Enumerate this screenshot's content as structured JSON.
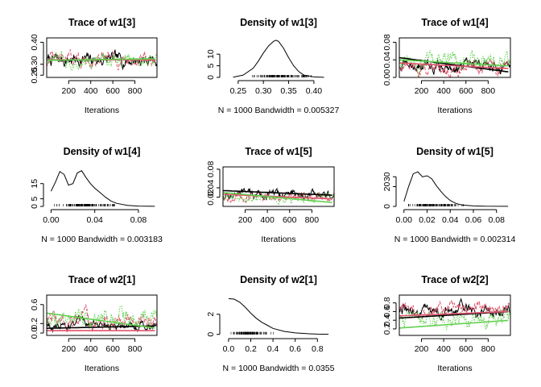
{
  "chart_data": [
    {
      "type": "line",
      "kind": "trace",
      "title": "Trace of w1[3]",
      "xlabel": "Iterations",
      "xlim": [
        1,
        1000
      ],
      "ylim": [
        0.24,
        0.42
      ],
      "xticks": [
        200,
        400,
        600,
        800
      ],
      "yticks": [
        0.25,
        0.3,
        0.4
      ],
      "series": [
        {
          "color": "#000000",
          "style": "solid",
          "level": 0.32,
          "spread": 0.025
        },
        {
          "color": "#DF536B",
          "style": "dashed",
          "level": 0.32,
          "spread": 0.025
        },
        {
          "color": "#61D04F",
          "style": "dotted",
          "level": 0.32,
          "spread": 0.025
        }
      ],
      "smooth": [
        {
          "color": "#000000",
          "y0": 0.318,
          "y1": 0.322
        },
        {
          "color": "#DF536B",
          "y0": 0.32,
          "y1": 0.32
        },
        {
          "color": "#61D04F",
          "y0": 0.318,
          "y1": 0.325
        }
      ]
    },
    {
      "type": "area",
      "kind": "density",
      "title": "Density of w1[3]",
      "xlabel": "N = 1000   Bandwidth = 0.005327",
      "xlim": [
        0.22,
        0.44
      ],
      "ylim": [
        0,
        17
      ],
      "xticks": [
        0.25,
        0.3,
        0.35,
        0.4
      ],
      "yticks": [
        0,
        5,
        10
      ],
      "x": [
        0.24,
        0.26,
        0.28,
        0.29,
        0.3,
        0.31,
        0.32,
        0.325,
        0.33,
        0.34,
        0.35,
        0.36,
        0.37,
        0.38,
        0.4,
        0.42
      ],
      "y": [
        0.1,
        1.0,
        4.0,
        7.0,
        10.5,
        13.5,
        15.5,
        16.0,
        15.5,
        12.5,
        8.5,
        5.0,
        2.5,
        1.0,
        0.2,
        0.05
      ],
      "rug": [
        0.27,
        0.42
      ]
    },
    {
      "type": "line",
      "kind": "trace",
      "title": "Trace of w1[4]",
      "xlabel": "Iterations",
      "xlim": [
        1,
        1000
      ],
      "ylim": [
        0,
        0.09
      ],
      "xticks": [
        200,
        400,
        600,
        800
      ],
      "yticks": [
        0.0,
        0.04,
        0.08
      ],
      "series": [
        {
          "color": "#000000",
          "style": "solid",
          "level": 0.025,
          "spread": 0.012
        },
        {
          "color": "#DF536B",
          "style": "dashed",
          "level": 0.022,
          "spread": 0.012
        },
        {
          "color": "#61D04F",
          "style": "dotted",
          "level": 0.035,
          "spread": 0.015
        }
      ],
      "smooth": [
        {
          "color": "#000000",
          "y0": 0.045,
          "y1": 0.012
        },
        {
          "color": "#DF536B",
          "y0": 0.033,
          "y1": 0.02
        },
        {
          "color": "#61D04F",
          "y0": 0.04,
          "y1": 0.026
        }
      ]
    },
    {
      "type": "area",
      "kind": "density",
      "title": "Density of w1[4]",
      "xlabel": "N = 1000   Bandwidth = 0.003183",
      "xlim": [
        -0.004,
        0.097
      ],
      "ylim": [
        0,
        26
      ],
      "xticks": [
        0.0,
        0.04,
        0.08
      ],
      "yticks": [
        0,
        5,
        15
      ],
      "x": [
        0.0,
        0.004,
        0.008,
        0.012,
        0.016,
        0.02,
        0.024,
        0.028,
        0.032,
        0.036,
        0.04,
        0.045,
        0.05,
        0.055,
        0.06,
        0.07,
        0.08,
        0.095
      ],
      "y": [
        10,
        16,
        23,
        21,
        14,
        15,
        22,
        23.5,
        19,
        15,
        12,
        9,
        6,
        3.5,
        2,
        0.7,
        0.2,
        0.05
      ],
      "rug": [
        0.0,
        0.07
      ]
    },
    {
      "type": "line",
      "kind": "trace",
      "title": "Trace of w1[5]",
      "xlabel": "Iterations",
      "xlim": [
        1,
        1000
      ],
      "ylim": [
        0,
        0.085
      ],
      "xticks": [
        200,
        400,
        600,
        800
      ],
      "yticks": [
        0.02,
        0.04,
        0.08
      ],
      "series": [
        {
          "color": "#000000",
          "style": "solid",
          "level": 0.025,
          "spread": 0.008
        },
        {
          "color": "#DF536B",
          "style": "dashed",
          "level": 0.02,
          "spread": 0.007
        },
        {
          "color": "#61D04F",
          "style": "dotted",
          "level": 0.02,
          "spread": 0.008
        }
      ],
      "smooth": [
        {
          "color": "#000000",
          "y0": 0.034,
          "y1": 0.024
        },
        {
          "color": "#DF536B",
          "y0": 0.026,
          "y1": 0.016
        },
        {
          "color": "#61D04F",
          "y0": 0.03,
          "y1": 0.008
        }
      ]
    },
    {
      "type": "area",
      "kind": "density",
      "title": "Density of w1[5]",
      "xlabel": "N = 1000   Bandwidth = 0.002314",
      "xlim": [
        -0.004,
        0.092
      ],
      "ylim": [
        0,
        40
      ],
      "xticks": [
        0.0,
        0.02,
        0.04,
        0.06,
        0.08
      ],
      "yticks": [
        0,
        20,
        30
      ],
      "x": [
        0.0,
        0.004,
        0.008,
        0.012,
        0.016,
        0.02,
        0.024,
        0.028,
        0.032,
        0.036,
        0.04,
        0.045,
        0.05,
        0.06,
        0.07,
        0.09
      ],
      "y": [
        5,
        20,
        33,
        35,
        30,
        31,
        28,
        21,
        15,
        10,
        6,
        3,
        1.5,
        0.5,
        0.2,
        0.05
      ],
      "rug": [
        0.0,
        0.06
      ]
    },
    {
      "type": "line",
      "kind": "trace",
      "title": "Trace of w2[1]",
      "xlabel": "Iterations",
      "xlim": [
        1,
        1000
      ],
      "ylim": [
        -0.05,
        0.8
      ],
      "xticks": [
        200,
        400,
        600,
        800
      ],
      "yticks": [
        0.0,
        0.2,
        0.6
      ],
      "series": [
        {
          "color": "#000000",
          "style": "solid",
          "level": 0.18,
          "spread": 0.08
        },
        {
          "color": "#DF536B",
          "style": "dashed",
          "level": 0.25,
          "spread": 0.14
        },
        {
          "color": "#61D04F",
          "style": "dotted",
          "level": 0.3,
          "spread": 0.15
        }
      ],
      "smooth": [
        {
          "color": "#000000",
          "y0": 0.1,
          "y1": 0.15
        },
        {
          "color": "#DF536B",
          "y0": 0.05,
          "y1": 0.05
        },
        {
          "color": "#61D04F",
          "y0": 0.42,
          "y1": 0.1
        }
      ]
    },
    {
      "type": "area",
      "kind": "density",
      "title": "Density of w2[1]",
      "xlabel": "N = 1000   Bandwidth = 0.0355",
      "xlim": [
        -0.05,
        0.95
      ],
      "ylim": [
        -0.1,
        3.9
      ],
      "xticks": [
        0.0,
        0.2,
        0.4,
        0.6,
        0.8
      ],
      "yticks": [
        0,
        2
      ],
      "x": [
        0.0,
        0.05,
        0.1,
        0.15,
        0.2,
        0.25,
        0.3,
        0.35,
        0.4,
        0.5,
        0.6,
        0.7,
        0.8,
        0.9
      ],
      "y": [
        3.55,
        3.5,
        3.2,
        2.7,
        2.1,
        1.6,
        1.2,
        0.9,
        0.6,
        0.3,
        0.15,
        0.08,
        0.03,
        0.01
      ],
      "rug": [
        0.0,
        0.45
      ]
    },
    {
      "type": "line",
      "kind": "trace",
      "title": "Trace of w2[2]",
      "xlabel": "Iterations",
      "xlim": [
        1,
        1000
      ],
      "ylim": [
        0.05,
        0.98
      ],
      "xticks": [
        200,
        400,
        600,
        800
      ],
      "yticks": [
        0.2,
        0.4,
        0.6,
        0.8
      ],
      "series": [
        {
          "color": "#000000",
          "style": "solid",
          "level": 0.62,
          "spread": 0.12
        },
        {
          "color": "#DF536B",
          "style": "dashed",
          "level": 0.65,
          "spread": 0.12
        },
        {
          "color": "#61D04F",
          "style": "dotted",
          "level": 0.4,
          "spread": 0.15
        }
      ],
      "smooth": [
        {
          "color": "#000000",
          "y0": 0.45,
          "y1": 0.6
        },
        {
          "color": "#DF536B",
          "y0": 0.5,
          "y1": 0.6
        },
        {
          "color": "#61D04F",
          "y0": 0.22,
          "y1": 0.4
        }
      ]
    }
  ]
}
